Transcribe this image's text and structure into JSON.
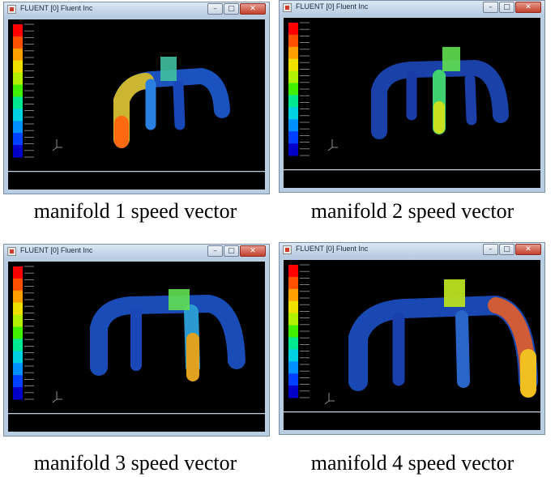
{
  "windows": [
    {
      "title": "FLUENT [0] Fluent Inc",
      "caption": "manifold 1 speed vector",
      "outlet_branch": "right"
    },
    {
      "title": "FLUENT [0] Fluent Inc",
      "caption": "manifold 2 speed vector",
      "outlet_branch": "center-right"
    },
    {
      "title": "FLUENT [0] Fluent Inc",
      "caption": "manifold 3 speed vector",
      "outlet_branch": "center-right"
    },
    {
      "title": "FLUENT [0] Fluent Inc",
      "caption": "manifold 4 speed vector",
      "outlet_branch": "right"
    }
  ],
  "window_controls": {
    "minimize_glyph": "–",
    "maximize_glyph": "□",
    "close_glyph": "✕"
  },
  "colormap_colors": [
    "#0000c8",
    "#0040ff",
    "#0090ff",
    "#00d0e0",
    "#00e890",
    "#40f000",
    "#b0f000",
    "#f0e000",
    "#ffa000",
    "#ff5000",
    "#ff0000"
  ],
  "icons": {
    "app": "fluent-app-icon",
    "axes": "xyz-axes-icon"
  }
}
